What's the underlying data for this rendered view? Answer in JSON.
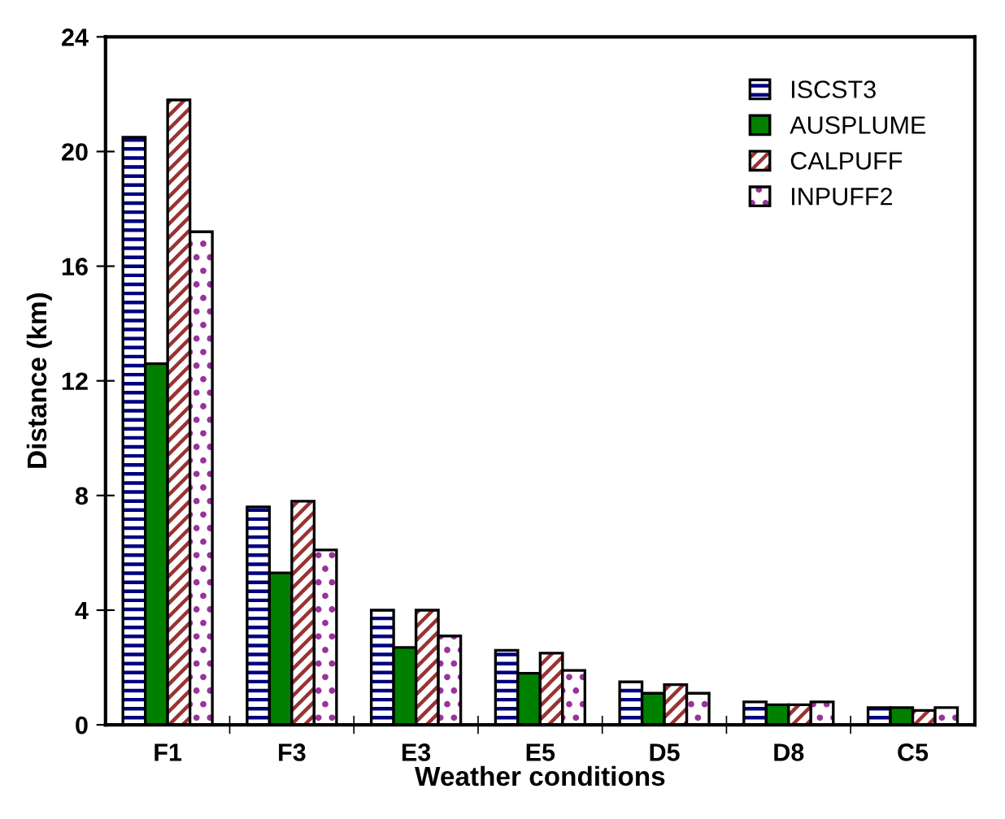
{
  "chart_data": {
    "type": "bar",
    "xlabel": "Weather conditions",
    "ylabel": "Distance (km)",
    "categories": [
      "F1",
      "F3",
      "E3",
      "E5",
      "D5",
      "D8",
      "C5"
    ],
    "series": [
      {
        "name": "ISCST3",
        "color": "#000080",
        "values": [
          20.5,
          7.6,
          4.0,
          2.6,
          1.5,
          0.8,
          0.6
        ]
      },
      {
        "name": "AUSPLUME",
        "color": "#008000",
        "values": [
          12.6,
          5.3,
          2.7,
          1.8,
          1.1,
          0.7,
          0.6
        ]
      },
      {
        "name": "CALPUFF",
        "color": "#993333",
        "values": [
          21.8,
          7.8,
          4.0,
          2.5,
          1.4,
          0.7,
          0.5
        ]
      },
      {
        "name": "INPUFF2",
        "color": "#993399",
        "values": [
          17.2,
          6.1,
          3.1,
          1.9,
          1.1,
          0.8,
          0.6
        ]
      }
    ],
    "ylim": [
      0,
      24
    ],
    "yticks": [
      0,
      4,
      8,
      12,
      16,
      20,
      24
    ],
    "grid": false,
    "legend": "top right"
  }
}
